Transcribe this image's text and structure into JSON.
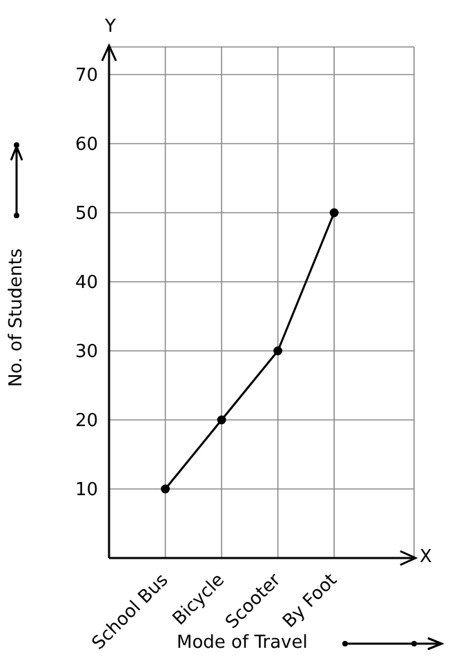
{
  "chart_data": {
    "type": "line",
    "xlabel": "Mode of Travel",
    "ylabel": "No. of Students",
    "categories": [
      "School Bus",
      "Bicycle",
      "Scooter",
      "By Foot"
    ],
    "series": [
      {
        "color": "#000000",
        "values": [
          10,
          20,
          30,
          50
        ]
      }
    ],
    "ylim": [
      0,
      74
    ],
    "yticks": [
      10,
      20,
      30,
      40,
      50,
      60,
      70
    ],
    "grid": true,
    "marker": "circle",
    "line_style": "solid",
    "annotations": [
      "X",
      "Y"
    ]
  }
}
